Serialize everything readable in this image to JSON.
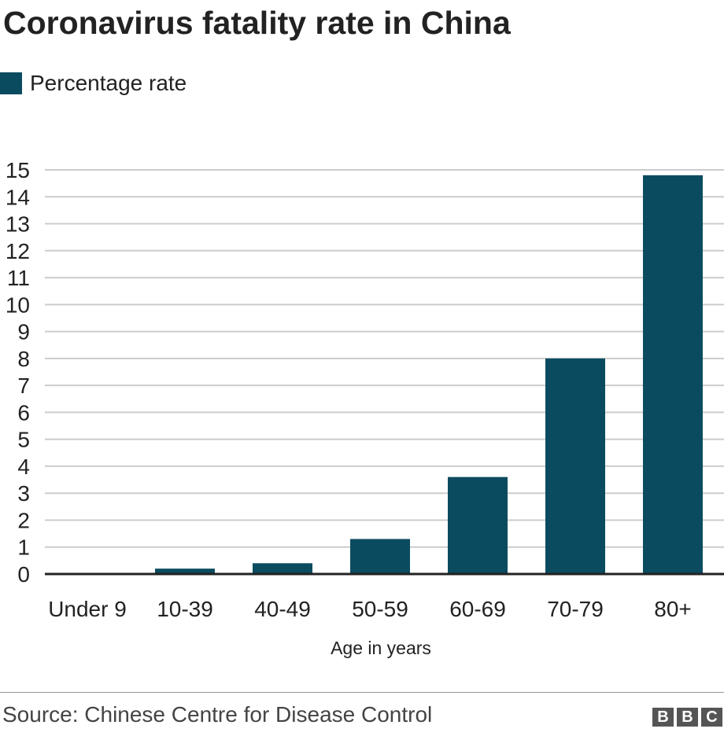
{
  "chart_data": {
    "type": "bar",
    "title": "Coronavirus fatality rate in China",
    "legend": [
      "Percentage rate"
    ],
    "categories": [
      "Under 9",
      "10-39",
      "40-49",
      "50-59",
      "60-69",
      "70-79",
      "80+"
    ],
    "values": [
      0,
      0.2,
      0.4,
      1.3,
      3.6,
      8.0,
      14.8
    ],
    "xlabel": "Age in years",
    "ylabel": "",
    "ylim": [
      0,
      15
    ],
    "yticks": [
      0,
      1,
      2,
      3,
      4,
      5,
      6,
      7,
      8,
      9,
      10,
      11,
      12,
      13,
      14,
      15
    ],
    "grid": true,
    "color": "#0b4b5f"
  },
  "source": "Source: Chinese Centre for Disease Control",
  "logo": [
    "B",
    "B",
    "C"
  ]
}
